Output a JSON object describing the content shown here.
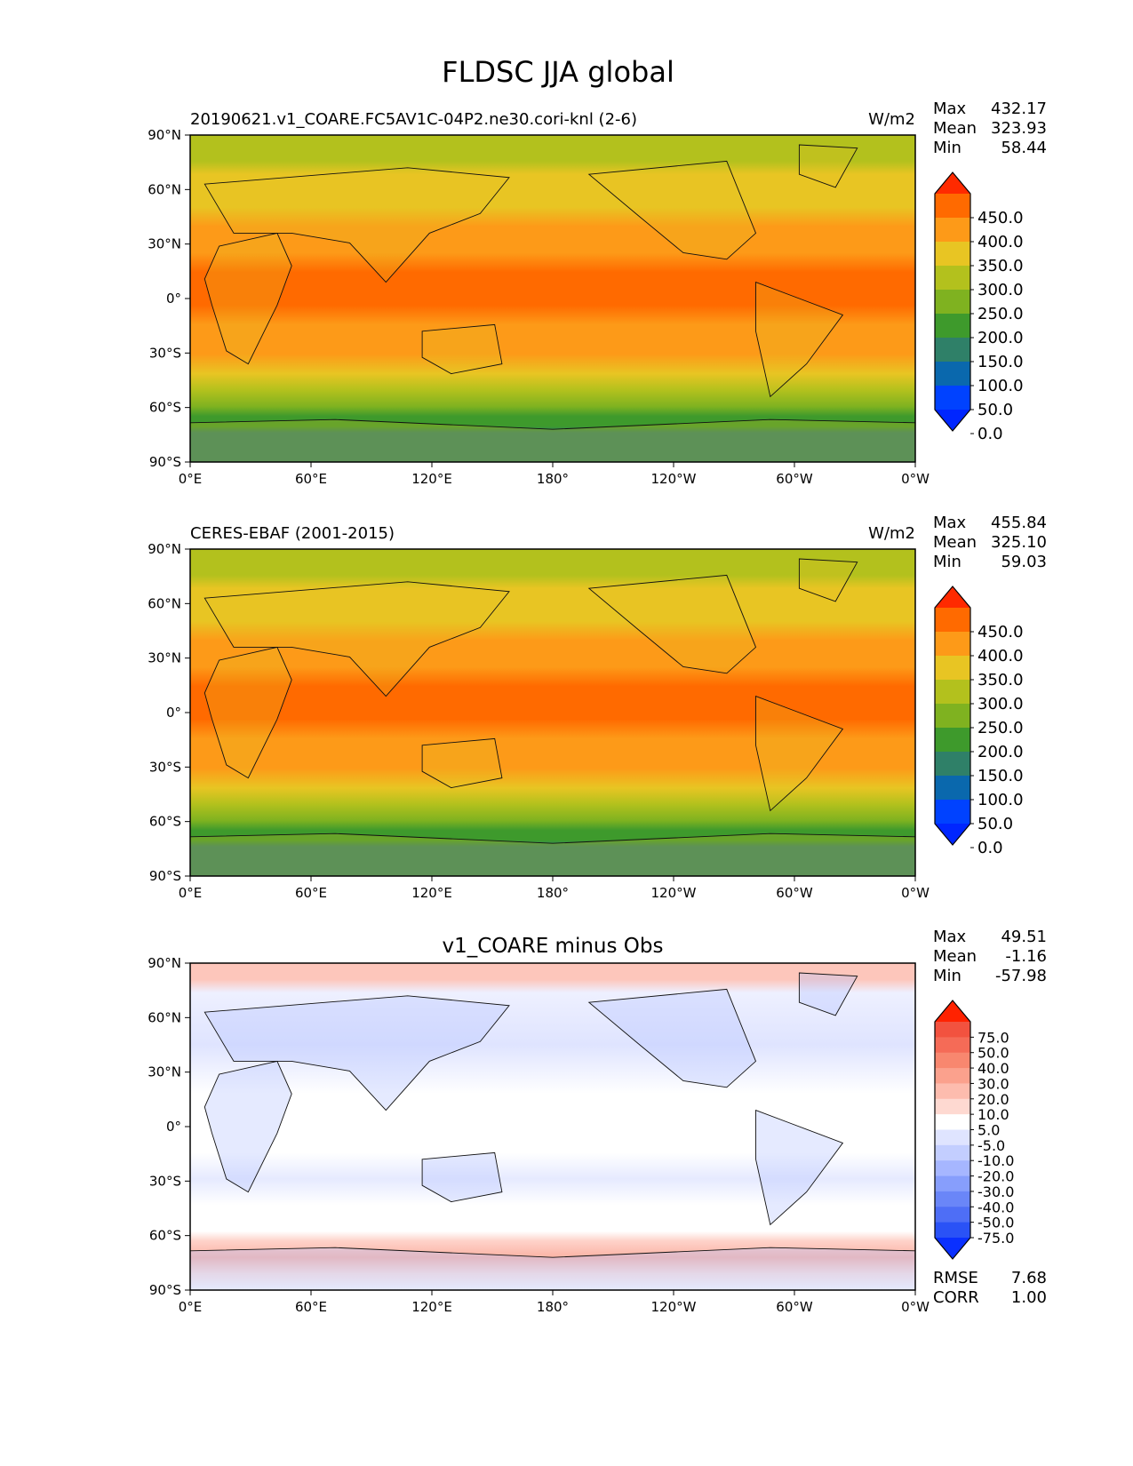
{
  "title": "FLDSC JJA global",
  "chart_data": [
    {
      "type": "heatmap",
      "name": "test",
      "title_left": "20190621.v1_COARE.FC5AV1C-04P2.ne30.cori-knl (2-6)",
      "title_center": "",
      "units": "W/m2",
      "stats": [
        {
          "label": "Max",
          "value": "432.17"
        },
        {
          "label": "Mean",
          "value": "323.93"
        },
        {
          "label": "Min",
          "value": "58.44"
        }
      ],
      "colorbar_levels": [
        "450.0",
        "400.0",
        "350.0",
        "300.0",
        "250.0",
        "200.0",
        "150.0",
        "100.0",
        "50.0",
        "0.0"
      ],
      "colorbar_colors": [
        "#ff2a00",
        "#ff6a00",
        "#fd9a18",
        "#e8c523",
        "#b3c11d",
        "#7fb220",
        "#3e9a2c",
        "#2f8068",
        "#0a68ad",
        "#0042ff",
        "#0026ff"
      ],
      "xticks": [
        "0°E",
        "60°E",
        "120°E",
        "180°",
        "120°W",
        "60°W",
        "0°W"
      ],
      "yticks": [
        "90°N",
        "60°N",
        "30°N",
        "0°",
        "30°S",
        "60°S",
        "90°S"
      ],
      "metrics": []
    },
    {
      "type": "heatmap",
      "name": "reference",
      "title_left": "CERES-EBAF (2001-2015)",
      "title_center": "",
      "units": "W/m2",
      "stats": [
        {
          "label": "Max",
          "value": "455.84"
        },
        {
          "label": "Mean",
          "value": "325.10"
        },
        {
          "label": "Min",
          "value": "59.03"
        }
      ],
      "colorbar_levels": [
        "450.0",
        "400.0",
        "350.0",
        "300.0",
        "250.0",
        "200.0",
        "150.0",
        "100.0",
        "50.0",
        "0.0"
      ],
      "colorbar_colors": [
        "#ff2a00",
        "#ff6a00",
        "#fd9a18",
        "#e8c523",
        "#b3c11d",
        "#7fb220",
        "#3e9a2c",
        "#2f8068",
        "#0a68ad",
        "#0042ff",
        "#0026ff"
      ],
      "xticks": [
        "0°E",
        "60°E",
        "120°E",
        "180°",
        "120°W",
        "60°W",
        "0°W"
      ],
      "yticks": [
        "90°N",
        "60°N",
        "30°N",
        "0°",
        "30°S",
        "60°S",
        "90°S"
      ],
      "metrics": []
    },
    {
      "type": "heatmap",
      "name": "difference",
      "title_left": "",
      "title_center": "v1_COARE minus Obs",
      "units": "",
      "stats": [
        {
          "label": "Max",
          "value": "49.51"
        },
        {
          "label": "Mean",
          "value": "-1.16"
        },
        {
          "label": "Min",
          "value": "-57.98"
        }
      ],
      "colorbar_levels": [
        "75.0",
        "50.0",
        "40.0",
        "30.0",
        "20.0",
        "10.0",
        "5.0",
        "-5.0",
        "-10.0",
        "-20.0",
        "-30.0",
        "-40.0",
        "-50.0",
        "-75.0"
      ],
      "colorbar_colors": [
        "#ff2200",
        "#f2523f",
        "#f56b57",
        "#f8876f",
        "#fba18d",
        "#fdbcae",
        "#fed9d1",
        "#ffffff",
        "#dfe4ff",
        "#c3ceff",
        "#a6b6ff",
        "#879efc",
        "#6a86f8",
        "#4e6ef6",
        "#2a52f6",
        "#0a30ff"
      ],
      "xticks": [
        "0°E",
        "60°E",
        "120°E",
        "180°",
        "120°W",
        "60°W",
        "0°W"
      ],
      "yticks": [
        "90°N",
        "60°N",
        "30°N",
        "0°",
        "30°S",
        "60°S",
        "90°S"
      ],
      "metrics": [
        {
          "label": "RMSE",
          "value": "7.68"
        },
        {
          "label": "CORR",
          "value": "1.00"
        }
      ]
    }
  ]
}
